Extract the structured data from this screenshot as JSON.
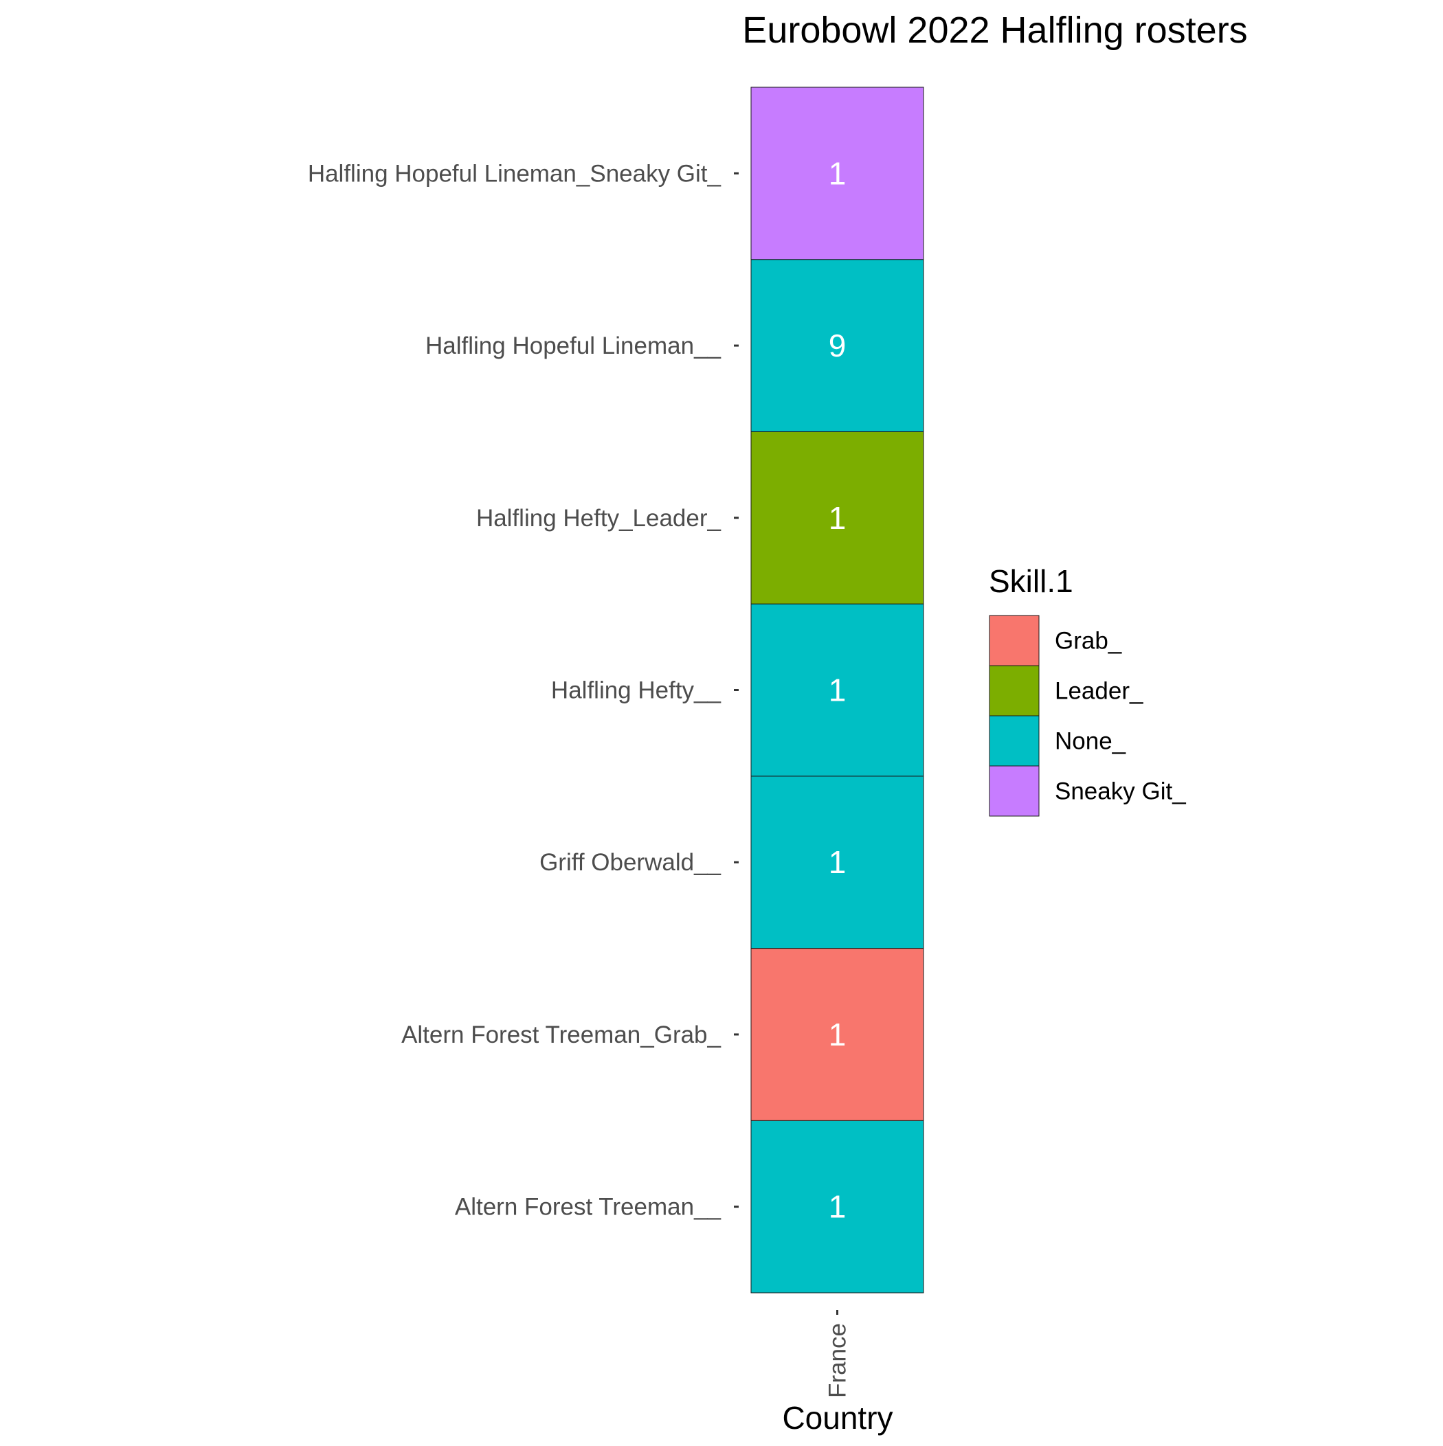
{
  "chart_data": {
    "type": "heatmap",
    "title": "Eurobowl 2022 Halfling rosters",
    "xlabel": "Country",
    "ylabel": "",
    "x_categories": [
      "France"
    ],
    "y_categories": [
      "Altern Forest Treeman__",
      "Altern Forest Treeman_Grab_",
      "Griff Oberwald__",
      "Halfling Hefty__",
      "Halfling Hefty_Leader_",
      "Halfling Hopeful Lineman__",
      "Halfling Hopeful Lineman_Sneaky Git_"
    ],
    "cells": [
      {
        "x": "France",
        "y": "Altern Forest Treeman__",
        "value": 1,
        "fill": "None_"
      },
      {
        "x": "France",
        "y": "Altern Forest Treeman_Grab_",
        "value": 1,
        "fill": "Grab_"
      },
      {
        "x": "France",
        "y": "Griff Oberwald__",
        "value": 1,
        "fill": "None_"
      },
      {
        "x": "France",
        "y": "Halfling Hefty__",
        "value": 1,
        "fill": "None_"
      },
      {
        "x": "France",
        "y": "Halfling Hefty_Leader_",
        "value": 1,
        "fill": "Leader_"
      },
      {
        "x": "France",
        "y": "Halfling Hopeful Lineman__",
        "value": 9,
        "fill": "None_"
      },
      {
        "x": "France",
        "y": "Halfling Hopeful Lineman_Sneaky Git_",
        "value": 1,
        "fill": "Sneaky Git_"
      }
    ],
    "legend": {
      "title": "Skill.1",
      "position": "right",
      "entries": [
        {
          "label": "Grab_",
          "color": "#F8766D"
        },
        {
          "label": "Leader_",
          "color": "#7CAE00"
        },
        {
          "label": "None_",
          "color": "#00BFC4"
        },
        {
          "label": "Sneaky Git_",
          "color": "#C77CFF"
        }
      ]
    },
    "grid": false,
    "x_tick_rotation": "vertical"
  }
}
